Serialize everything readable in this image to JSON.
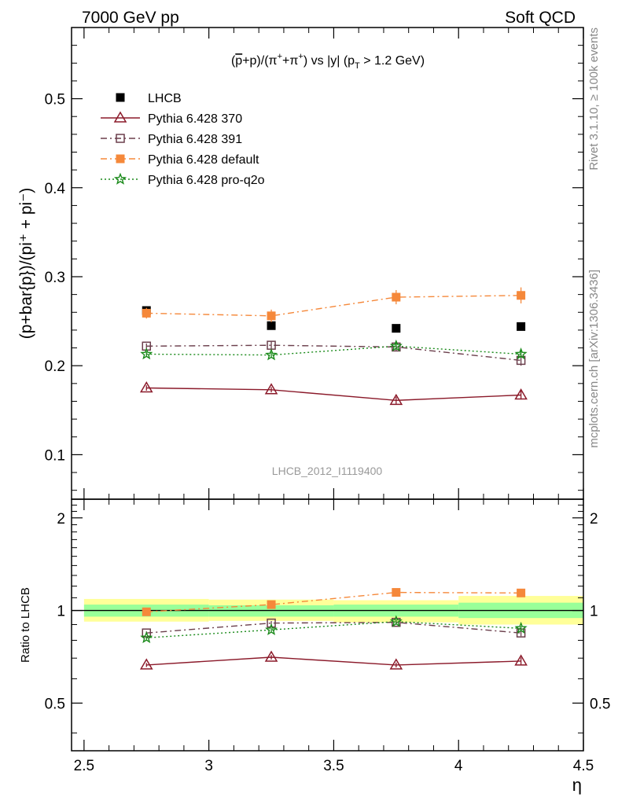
{
  "header": {
    "left_title": "7000 GeV pp",
    "right_title": "Soft QCD"
  },
  "side_labels": {
    "rivet": "Rivet 3.1.10, ≥ 100k events",
    "mcplots": "mcplots.cern.ch [arXiv:1306.3436]"
  },
  "chart_data": [
    {
      "type": "scatter",
      "title_parts": {
        "pbar": "p",
        "mid": "+p)/(π",
        "plus": "+",
        "pi2": "+π",
        "end": ") vs |y| (p",
        "sub": "T",
        "tail": " > 1.2 GeV)"
      },
      "ylabel": "(p+bar{p})/(pi⁺ + pi⁻)",
      "ylim": [
        0.05,
        0.58
      ],
      "yticks": [
        0.1,
        0.2,
        0.3,
        0.4,
        0.5
      ],
      "ytick_labels": [
        "0.1",
        "0.2",
        "0.3",
        "0.4",
        "0.5"
      ],
      "watermark": "LHCB_2012_I1119400",
      "legend_position": "top-left",
      "x": [
        2.75,
        3.25,
        3.75,
        4.25
      ],
      "series": [
        {
          "name": "LHCB",
          "color": "#000000",
          "marker": "square-filled",
          "line": "none",
          "values": [
            0.262,
            0.245,
            0.242,
            0.244
          ],
          "errors": [
            0,
            0,
            0,
            0
          ]
        },
        {
          "name": "Pythia 6.428 370",
          "color": "#8b1a2a",
          "marker": "triangle-open",
          "line": "solid",
          "values": [
            0.175,
            0.173,
            0.161,
            0.167
          ],
          "errors": [
            0.003,
            0.003,
            0.004,
            0.005
          ]
        },
        {
          "name": "Pythia 6.428 391",
          "color": "#6b3f4c",
          "marker": "square-open",
          "line": "dashdot",
          "values": [
            0.222,
            0.223,
            0.221,
            0.206
          ],
          "errors": [
            0.003,
            0.004,
            0.004,
            0.006
          ]
        },
        {
          "name": "Pythia 6.428 default",
          "color": "#f5883a",
          "marker": "square-filled",
          "line": "dashdot",
          "values": [
            0.259,
            0.256,
            0.277,
            0.279
          ],
          "errors": [
            0.006,
            0.007,
            0.008,
            0.009
          ]
        },
        {
          "name": "Pythia 6.428 pro-q2o",
          "color": "#1a8a1a",
          "marker": "star-open",
          "line": "dotted",
          "values": [
            0.213,
            0.212,
            0.222,
            0.213
          ],
          "errors": [
            0.003,
            0.003,
            0.004,
            0.004
          ]
        }
      ]
    },
    {
      "type": "scatter",
      "ylabel": "Ratio to LHCB",
      "ylim": [
        0.35,
        2.3
      ],
      "yticks": [
        0.5,
        1,
        2
      ],
      "ytick_labels": [
        "0.5",
        "1",
        "2"
      ],
      "xlabel": "η",
      "xlim": [
        2.45,
        4.5
      ],
      "xticks": [
        2.5,
        3,
        3.5,
        4,
        4.5
      ],
      "xtick_labels": [
        "2.5",
        "3",
        "3.5",
        "4",
        "4.5"
      ],
      "bands": [
        {
          "x0": 2.5,
          "x1": 3.0,
          "inner": [
            0.955,
            1.045
          ],
          "outer": [
            0.92,
            1.09
          ]
        },
        {
          "x0": 3.0,
          "x1": 3.5,
          "inner": [
            0.955,
            1.04
          ],
          "outer": [
            0.925,
            1.085
          ]
        },
        {
          "x0": 3.5,
          "x1": 4.0,
          "inner": [
            0.955,
            1.045
          ],
          "outer": [
            0.915,
            1.08
          ]
        },
        {
          "x0": 4.0,
          "x1": 4.5,
          "inner": [
            0.945,
            1.06
          ],
          "outer": [
            0.9,
            1.115
          ]
        }
      ],
      "series": [
        {
          "name": "Pythia 6.428 370",
          "color": "#8b1a2a",
          "marker": "triangle-open",
          "line": "solid",
          "values": [
            0.665,
            0.705,
            0.665,
            0.685
          ],
          "errors": [
            0.01,
            0.012,
            0.012,
            0.018
          ]
        },
        {
          "name": "Pythia 6.428 391",
          "color": "#6b3f4c",
          "marker": "square-open",
          "line": "dashdot",
          "values": [
            0.845,
            0.91,
            0.915,
            0.845
          ],
          "errors": [
            0.01,
            0.014,
            0.014,
            0.02
          ]
        },
        {
          "name": "Pythia 6.428 default",
          "color": "#f5883a",
          "marker": "square-filled",
          "line": "dashdot",
          "values": [
            0.99,
            1.045,
            1.145,
            1.14
          ],
          "errors": [
            0.02,
            0.025,
            0.03,
            0.03
          ]
        },
        {
          "name": "Pythia 6.428 pro-q2o",
          "color": "#1a8a1a",
          "marker": "star-open",
          "line": "dotted",
          "values": [
            0.815,
            0.865,
            0.92,
            0.875
          ],
          "errors": [
            0.01,
            0.012,
            0.014,
            0.016
          ]
        }
      ]
    }
  ]
}
